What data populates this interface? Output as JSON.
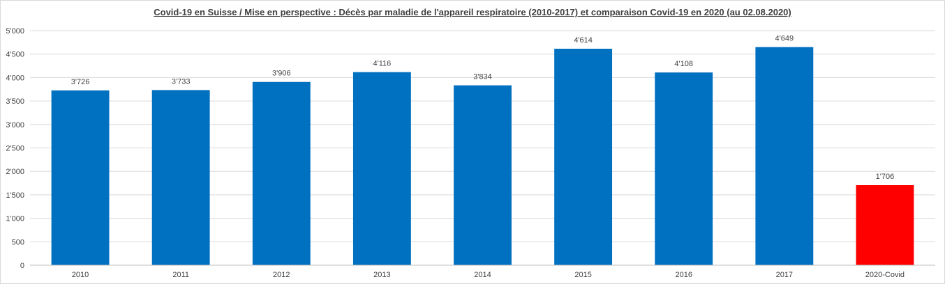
{
  "chart_data": {
    "type": "bar",
    "title": "Covid-19 en Suisse / Mise en perspective : Décès par maladie  de l'appareil respiratoire (2010-2017) et comparaison  Covid-19 en 2020 (au 02.08.2020)",
    "categories": [
      "2010",
      "2011",
      "2012",
      "2013",
      "2014",
      "2015",
      "2016",
      "2017",
      "2020-Covid"
    ],
    "values": [
      3726,
      3733,
      3906,
      4116,
      3834,
      4614,
      4108,
      4649,
      1706
    ],
    "data_labels": [
      "3'726",
      "3'733",
      "3'906",
      "4'116",
      "3'834",
      "4'614",
      "4'108",
      "4'649",
      "1'706"
    ],
    "bar_colors": [
      "#0070c0",
      "#0070c0",
      "#0070c0",
      "#0070c0",
      "#0070c0",
      "#0070c0",
      "#0070c0",
      "#0070c0",
      "#ff0000"
    ],
    "ylim": [
      0,
      5000
    ],
    "yticks": [
      0,
      500,
      1000,
      1500,
      2000,
      2500,
      3000,
      3500,
      4000,
      4500,
      5000
    ],
    "ytick_labels": [
      "0",
      "500",
      "1'000",
      "1'500",
      "2'000",
      "2'500",
      "3'000",
      "3'500",
      "4'000",
      "4'500",
      "5'000"
    ],
    "xlabel": "",
    "ylabel": "",
    "grid": true,
    "legend": "none"
  }
}
